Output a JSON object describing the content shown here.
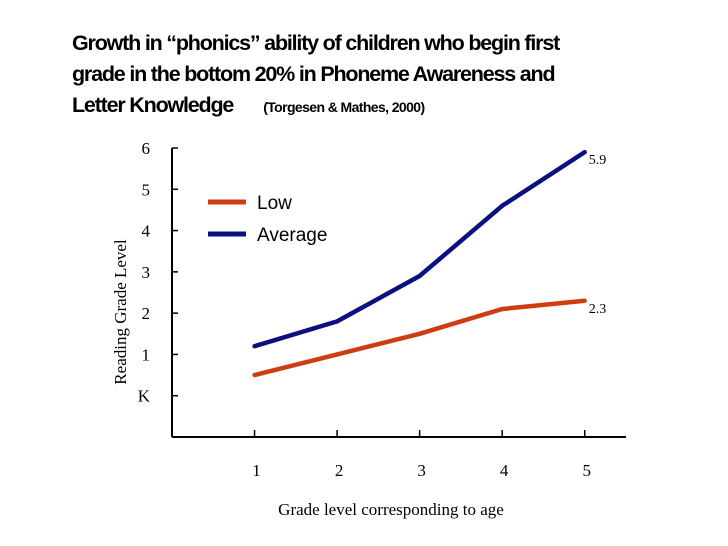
{
  "title": {
    "line1": "Growth in “phonics” ability of children who begin first",
    "line2": "grade in the bottom 20% in Phoneme Awareness and",
    "line3": "Letter Knowledge",
    "citation": "(Torgesen & Mathes, 2000)"
  },
  "chart_data": {
    "type": "line",
    "title": "Growth in “phonics” ability of children who begin first grade in the bottom 20% in Phoneme Awareness and Letter Knowledge",
    "xlabel": "Grade level corresponding to age",
    "ylabel": "Reading Grade Level",
    "x": [
      1,
      2,
      3,
      4,
      5
    ],
    "x_tick_labels": [
      "1",
      "2",
      "3",
      "4",
      "5"
    ],
    "y_ticks": [
      0,
      1,
      2,
      3,
      4,
      5,
      6
    ],
    "y_tick_labels": [
      "K",
      "1",
      "2",
      "3",
      "4",
      "5",
      "6"
    ],
    "ylim": [
      -1,
      6
    ],
    "xlim": [
      0,
      5.5
    ],
    "grid": false,
    "legend_position": "top-left",
    "series": [
      {
        "name": "Low",
        "color": "#cc3d12",
        "values": [
          0.5,
          1.0,
          1.5,
          2.1,
          2.3
        ],
        "end_label": "2.3"
      },
      {
        "name": "Average",
        "color": "#0a1080",
        "values": [
          1.2,
          1.8,
          2.9,
          4.6,
          5.9
        ],
        "end_label": "5.9"
      }
    ]
  }
}
